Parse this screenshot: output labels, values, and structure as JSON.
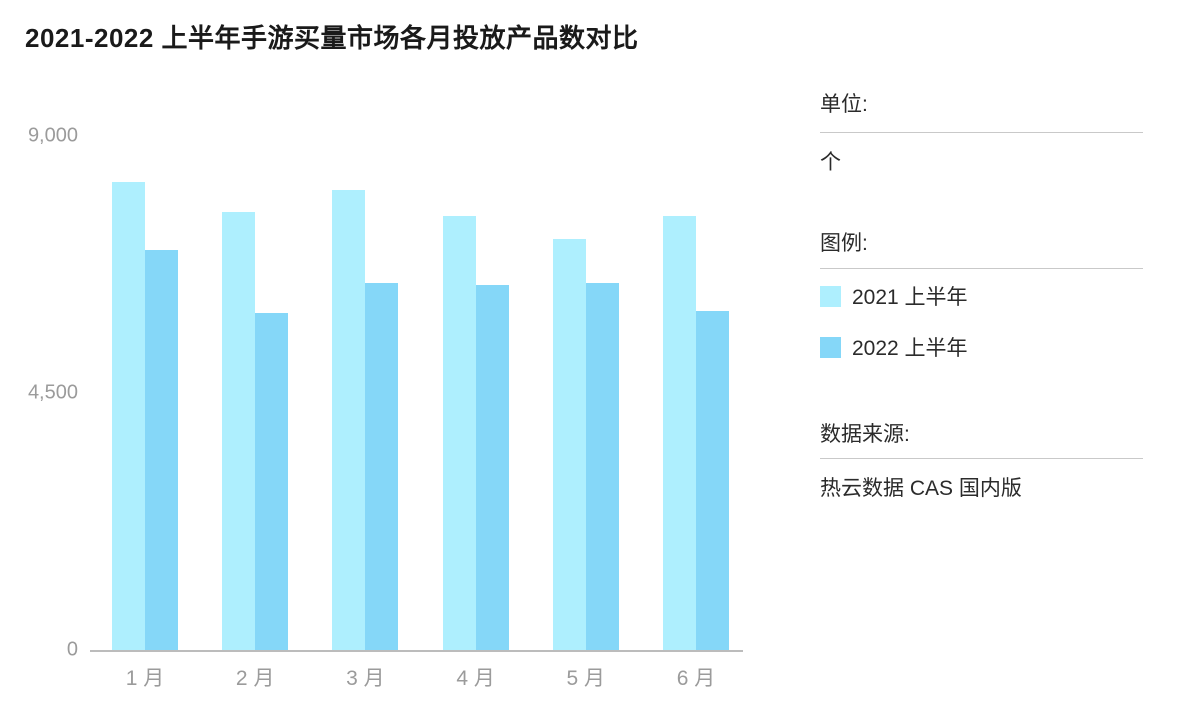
{
  "title": "2021-2022 上半年手游买量市场各月投放产品数对比",
  "panel": {
    "unit_label": "单位:",
    "unit_value": "个",
    "legend_label": "图例:",
    "source_label": "数据来源:",
    "source_value": "热云数据 CAS 国内版"
  },
  "colors": {
    "series_2021": "#aeeffe",
    "series_2022": "#85d7f8",
    "axis_text": "#9b9b9b",
    "axis_line": "#bcbcbc",
    "divider": "#c9c9c9",
    "title_text": "#1a1a1a",
    "panel_text": "#2b2b2b"
  },
  "chart_data": {
    "type": "bar",
    "title": "2021-2022 上半年手游买量市场各月投放产品数对比",
    "categories": [
      "1 月",
      "2 月",
      "3 月",
      "4 月",
      "5 月",
      "6 月"
    ],
    "series": [
      {
        "name": "2021 上半年",
        "color": "#aeeffe",
        "values": [
          8200,
          7670,
          8050,
          7600,
          7200,
          7600
        ]
      },
      {
        "name": "2022 上半年",
        "color": "#85d7f8",
        "values": [
          7000,
          5900,
          6430,
          6390,
          6430,
          5940
        ]
      }
    ],
    "xlabel": "",
    "ylabel": "",
    "unit": "个",
    "ylim": [
      0,
      9000
    ],
    "yticks": [
      {
        "value": 9000,
        "label": "9,000"
      },
      {
        "value": 4500,
        "label": "4,500"
      },
      {
        "value": 0,
        "label": "0"
      }
    ],
    "grid": false,
    "legend_position": "right-panel",
    "source": "热云数据 CAS 国内版"
  }
}
